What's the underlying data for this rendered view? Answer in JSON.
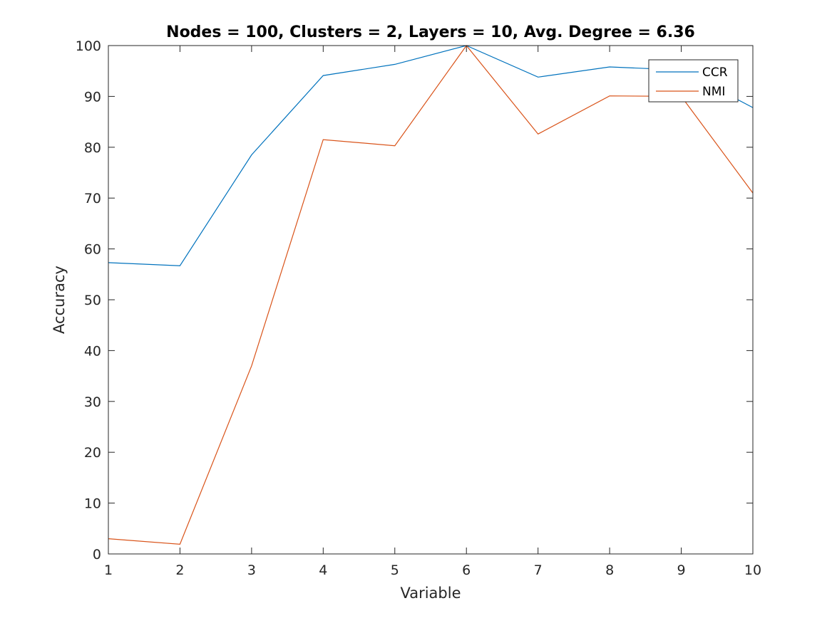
{
  "chart_data": {
    "type": "line",
    "title": "Nodes = 100, Clusters = 2, Layers = 10, Avg. Degree = 6.36",
    "xlabel": "Variable",
    "ylabel": "Accuracy",
    "x": [
      1,
      2,
      3,
      4,
      5,
      6,
      7,
      8,
      9,
      10
    ],
    "xlim": [
      1,
      10
    ],
    "ylim": [
      0,
      100
    ],
    "xticks": [
      1,
      2,
      3,
      4,
      5,
      6,
      7,
      8,
      9,
      10
    ],
    "yticks": [
      0,
      10,
      20,
      30,
      40,
      50,
      60,
      70,
      80,
      90,
      100
    ],
    "grid": false,
    "legend_position": "top-right",
    "series": [
      {
        "name": "CCR",
        "color": "#0072BD",
        "values": [
          57.3,
          56.7,
          78.5,
          94.1,
          96.3,
          100,
          93.8,
          95.8,
          95.2,
          87.8
        ]
      },
      {
        "name": "NMI",
        "color": "#D95319",
        "values": [
          3.0,
          1.9,
          37.0,
          81.5,
          80.3,
          100,
          82.6,
          90.1,
          90.0,
          71.0
        ]
      }
    ]
  }
}
